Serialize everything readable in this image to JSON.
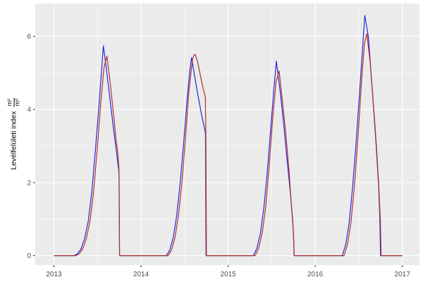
{
  "figure": {
    "background": "#FFFFFF"
  },
  "panel": {
    "background": "#EBEBEB",
    "grid_color": "#FFFFFF",
    "tick_color": "#333333",
    "tick_label_color": "#4D4D4D"
  },
  "axis": {
    "x": {
      "ticks": [
        {
          "value": 2013,
          "label": "2013"
        },
        {
          "value": 2014,
          "label": "2014"
        },
        {
          "value": 2015,
          "label": "2015"
        },
        {
          "value": 2016,
          "label": "2016"
        },
        {
          "value": 2017,
          "label": "2017"
        }
      ],
      "minor": [
        2013.5,
        2014.5,
        2015.5,
        2016.5
      ]
    },
    "y": {
      "title_text": "Levélfelületi index",
      "unit_numerator": "m²",
      "unit_denominator": "m²",
      "ticks": [
        {
          "value": 0,
          "label": "0"
        },
        {
          "value": 2,
          "label": "2"
        },
        {
          "value": 4,
          "label": "4"
        },
        {
          "value": 6,
          "label": "6"
        }
      ],
      "minor": [
        1,
        3,
        5
      ]
    }
  },
  "chart_data": {
    "type": "line",
    "title": "",
    "xlabel": "",
    "ylabel": "Levélfelületi index (m²/m²)",
    "x_unit": "year (decimal)",
    "grid": "on",
    "legend": "none",
    "x_range": [
      2012.7855,
      2017.197
    ],
    "y_range": [
      -0.258,
      6.897
    ],
    "x_major_ticks": [
      2013,
      2014,
      2015,
      2016,
      2017
    ],
    "x_minor_ticks": [
      2013.5,
      2014.5,
      2015.5,
      2016.5
    ],
    "y_major_ticks": [
      0,
      2,
      4,
      6
    ],
    "y_minor_ticks": [
      1,
      3,
      5
    ],
    "annual_peaks": {
      "blue": [
        {
          "year": 2013,
          "peak": 5.74
        },
        {
          "year": 2014,
          "peak": 5.42
        },
        {
          "year": 2015,
          "peak": 5.32
        },
        {
          "year": 2016,
          "peak": 6.57
        }
      ],
      "red": [
        {
          "year": 2013,
          "peak": 5.46
        },
        {
          "year": 2014,
          "peak": 5.51
        },
        {
          "year": 2015,
          "peak": 5.05
        },
        {
          "year": 2016,
          "peak": 6.07
        }
      ]
    },
    "series": [
      {
        "name": "blue-series",
        "color": "#2626D8",
        "points": [
          [
            2013.0,
            0
          ],
          [
            2013.23,
            0
          ],
          [
            2013.27,
            0.05
          ],
          [
            2013.31,
            0.18
          ],
          [
            2013.35,
            0.45
          ],
          [
            2013.395,
            0.95
          ],
          [
            2013.435,
            1.75
          ],
          [
            2013.475,
            2.85
          ],
          [
            2013.515,
            4.05
          ],
          [
            2013.545,
            5.0
          ],
          [
            2013.568,
            5.74
          ],
          [
            2013.6,
            5.15
          ],
          [
            2013.64,
            4.35
          ],
          [
            2013.68,
            3.55
          ],
          [
            2013.72,
            2.8
          ],
          [
            2013.748,
            2.25
          ],
          [
            2013.753,
            0
          ],
          [
            2014.29,
            0
          ],
          [
            2014.33,
            0.15
          ],
          [
            2014.37,
            0.5
          ],
          [
            2014.41,
            1.1
          ],
          [
            2014.45,
            2.0
          ],
          [
            2014.49,
            3.1
          ],
          [
            2014.53,
            4.3
          ],
          [
            2014.56,
            5.05
          ],
          [
            2014.58,
            5.42
          ],
          [
            2014.62,
            4.85
          ],
          [
            2014.66,
            4.3
          ],
          [
            2014.7,
            3.8
          ],
          [
            2014.74,
            3.35
          ],
          [
            2014.746,
            0
          ],
          [
            2015.29,
            0
          ],
          [
            2015.33,
            0.2
          ],
          [
            2015.37,
            0.6
          ],
          [
            2015.41,
            1.3
          ],
          [
            2015.45,
            2.3
          ],
          [
            2015.49,
            3.5
          ],
          [
            2015.525,
            4.55
          ],
          [
            2015.554,
            5.32
          ],
          [
            2015.6,
            4.45
          ],
          [
            2015.64,
            3.55
          ],
          [
            2015.68,
            2.55
          ],
          [
            2015.715,
            1.7
          ],
          [
            2015.742,
            0.95
          ],
          [
            2015.753,
            0.4
          ],
          [
            2015.758,
            0
          ],
          [
            2016.31,
            0
          ],
          [
            2016.35,
            0.3
          ],
          [
            2016.39,
            0.9
          ],
          [
            2016.43,
            1.9
          ],
          [
            2016.47,
            3.1
          ],
          [
            2016.51,
            4.5
          ],
          [
            2016.545,
            5.7
          ],
          [
            2016.569,
            6.57
          ],
          [
            2016.61,
            6.0
          ],
          [
            2016.635,
            5.2
          ],
          [
            2016.665,
            4.2
          ],
          [
            2016.7,
            3.0
          ],
          [
            2016.728,
            1.9
          ],
          [
            2016.741,
            1.08
          ],
          [
            2016.75,
            0
          ],
          [
            2017.0,
            0
          ]
        ]
      },
      {
        "name": "red-series",
        "color": "#B03030",
        "points": [
          [
            2013.0,
            0
          ],
          [
            2013.25,
            0
          ],
          [
            2013.29,
            0.05
          ],
          [
            2013.33,
            0.18
          ],
          [
            2013.37,
            0.45
          ],
          [
            2013.415,
            0.95
          ],
          [
            2013.455,
            1.75
          ],
          [
            2013.495,
            2.85
          ],
          [
            2013.535,
            4.1
          ],
          [
            2013.575,
            5.15
          ],
          [
            2013.609,
            5.46
          ],
          [
            2013.645,
            4.75
          ],
          [
            2013.685,
            3.85
          ],
          [
            2013.712,
            3.2
          ],
          [
            2013.735,
            2.78
          ],
          [
            2013.747,
            2.35
          ],
          [
            2013.754,
            0
          ],
          [
            2014.31,
            0
          ],
          [
            2014.35,
            0.15
          ],
          [
            2014.39,
            0.5
          ],
          [
            2014.43,
            1.1
          ],
          [
            2014.47,
            2.0
          ],
          [
            2014.51,
            3.2
          ],
          [
            2014.55,
            4.5
          ],
          [
            2014.59,
            5.35
          ],
          [
            2014.605,
            5.47
          ],
          [
            2014.621,
            5.51
          ],
          [
            2014.65,
            5.3
          ],
          [
            2014.68,
            4.95
          ],
          [
            2014.71,
            4.6
          ],
          [
            2014.738,
            4.35
          ],
          [
            2014.744,
            3.5
          ],
          [
            2014.751,
            0
          ],
          [
            2015.31,
            0
          ],
          [
            2015.35,
            0.2
          ],
          [
            2015.39,
            0.6
          ],
          [
            2015.43,
            1.3
          ],
          [
            2015.47,
            2.4
          ],
          [
            2015.51,
            3.7
          ],
          [
            2015.55,
            4.75
          ],
          [
            2015.586,
            5.05
          ],
          [
            2015.62,
            4.3
          ],
          [
            2015.66,
            3.4
          ],
          [
            2015.7,
            2.3
          ],
          [
            2015.73,
            1.25
          ],
          [
            2015.748,
            0.7
          ],
          [
            2015.76,
            0
          ],
          [
            2016.33,
            0
          ],
          [
            2016.37,
            0.3
          ],
          [
            2016.41,
            0.9
          ],
          [
            2016.45,
            1.9
          ],
          [
            2016.49,
            3.2
          ],
          [
            2016.53,
            4.7
          ],
          [
            2016.565,
            5.8
          ],
          [
            2016.593,
            6.07
          ],
          [
            2016.63,
            5.3
          ],
          [
            2016.66,
            4.4
          ],
          [
            2016.7,
            3.1
          ],
          [
            2016.73,
            1.9
          ],
          [
            2016.748,
            0.95
          ],
          [
            2016.757,
            0
          ],
          [
            2017.0,
            0
          ]
        ]
      }
    ]
  }
}
